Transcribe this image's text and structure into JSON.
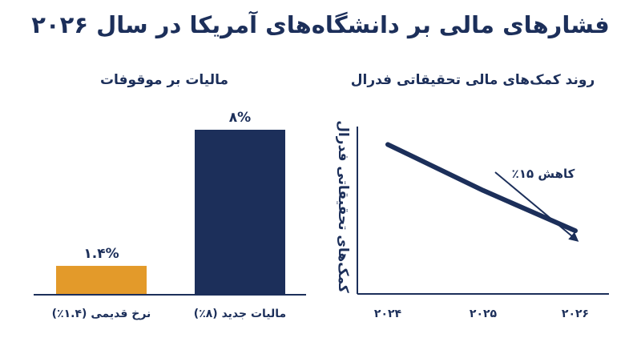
{
  "title": "فشارهای مالی بر دانشگاه‌های آمریکا در سال ۲۰۲۶",
  "colors": {
    "navy": "#1c2f5a",
    "gold": "#e39a2a",
    "axis": "#1c2f5a"
  },
  "chart_data": [
    {
      "type": "line",
      "title": "روند کمک‌های مالی تحقیقاتی فدرال",
      "ylabel": "کمک‌های تحقیقاتی فدرال",
      "xlabel": "",
      "x": [
        "۲۰۲۴",
        "۲۰۲۵",
        "۲۰۲۶"
      ],
      "values": [
        100,
        92,
        85
      ],
      "ylim": [
        80,
        102
      ],
      "annotation": "کاهش ۱۵٪",
      "grid": false
    },
    {
      "type": "bar",
      "title": "مالیات بر موقوفات",
      "categories": [
        "مالیات جدید (۸٪)",
        "نرخ قدیمی (۱.۴٪)"
      ],
      "values": [
        8,
        1.4
      ],
      "value_labels": [
        "۸%",
        "۱.۴%"
      ],
      "colors": [
        "#1c2f5a",
        "#e39a2a"
      ],
      "ylim": [
        0,
        8
      ],
      "grid": false
    }
  ]
}
